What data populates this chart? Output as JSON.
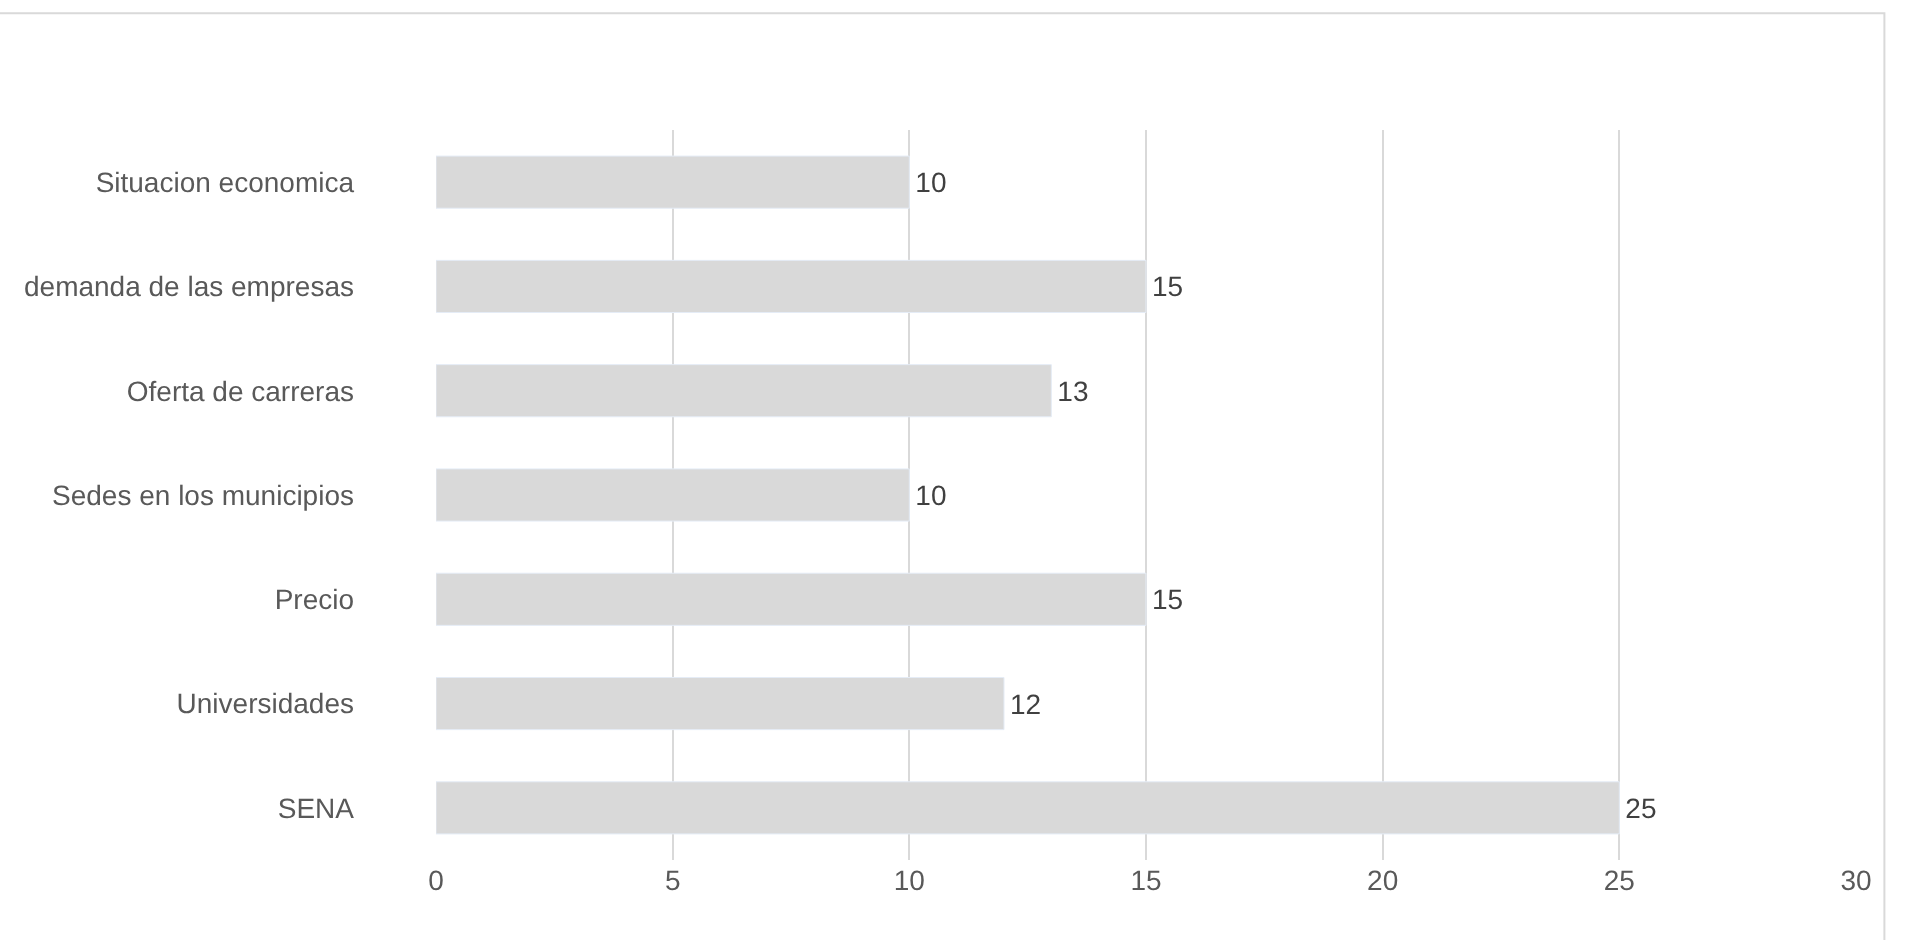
{
  "chart_data": {
    "type": "bar",
    "orientation": "horizontal",
    "categories": [
      "Situacion economica",
      "demanda de las empresas",
      "Oferta de carreras",
      "Sedes en los municipios",
      "Precio",
      "Universidades",
      "SENA"
    ],
    "values": [
      10,
      15,
      13,
      10,
      15,
      12,
      25
    ],
    "color": "#d9d9d9",
    "xlim": [
      0,
      30
    ],
    "xticks": [
      0,
      5,
      10,
      15,
      20,
      25,
      30
    ],
    "grid": "x",
    "data_labels": true
  }
}
